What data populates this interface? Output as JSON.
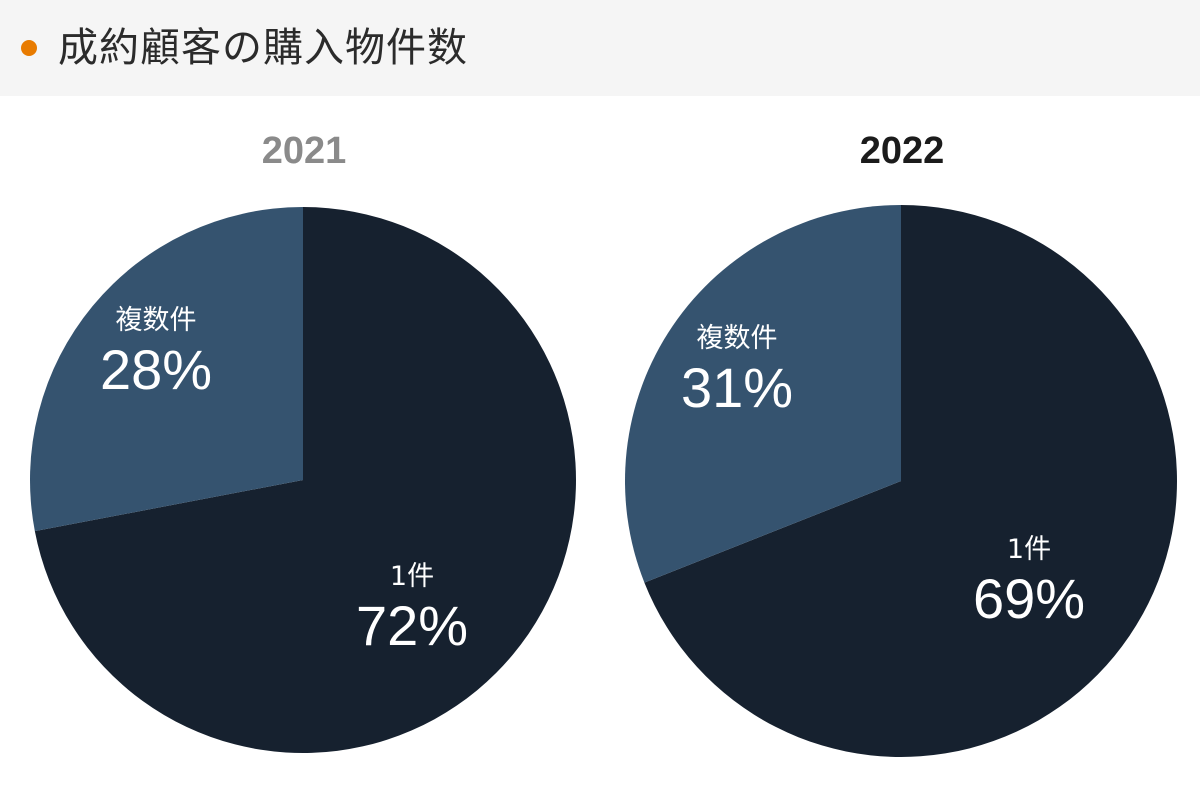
{
  "header": {
    "title": "成約顧客の購入物件数",
    "bullet_color": "#e87b00"
  },
  "colors": {
    "single": "#16212f",
    "multiple": "#35536f",
    "year_2021": "#8a8a8a",
    "year_2022": "#1b1b1b"
  },
  "charts": [
    {
      "year": "2021",
      "slices": [
        {
          "label": "1件",
          "pct_label": "72%"
        },
        {
          "label": "複数件",
          "pct_label": "28%"
        }
      ]
    },
    {
      "year": "2022",
      "slices": [
        {
          "label": "1件",
          "pct_label": "69%"
        },
        {
          "label": "複数件",
          "pct_label": "31%"
        }
      ]
    }
  ],
  "chart_data": [
    {
      "type": "pie",
      "title": "2021",
      "categories": [
        "1件",
        "複数件"
      ],
      "values": [
        72,
        28
      ],
      "unit": "%",
      "start_angle": "12 o'clock, clockwise",
      "colors": [
        "#16212f",
        "#35536f"
      ]
    },
    {
      "type": "pie",
      "title": "2022",
      "categories": [
        "1件",
        "複数件"
      ],
      "values": [
        69,
        31
      ],
      "unit": "%",
      "start_angle": "12 o'clock, clockwise",
      "colors": [
        "#16212f",
        "#35536f"
      ]
    }
  ]
}
